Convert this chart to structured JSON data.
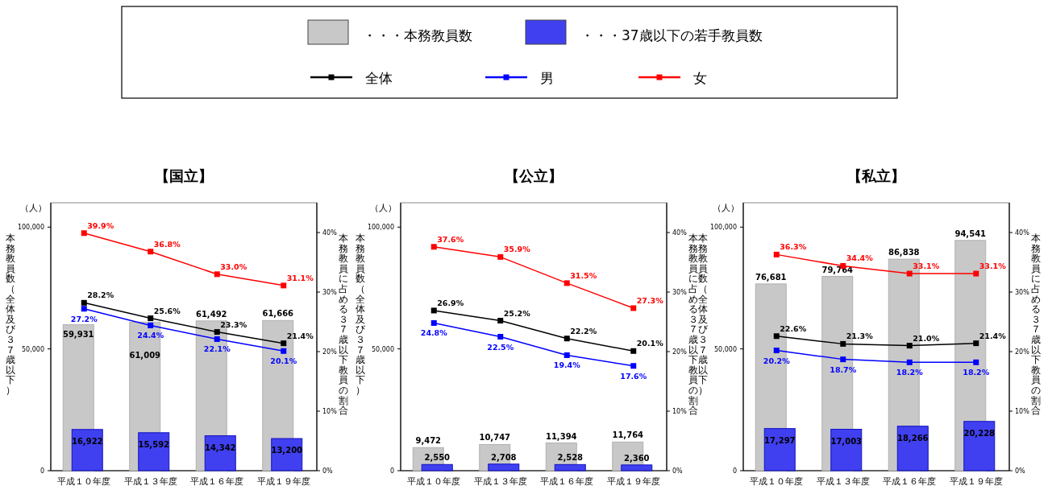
{
  "chart_data": [
    {
      "type": "bar",
      "title": "【国立】",
      "ylabel": "本務教員数（全体及び３７歳以下）",
      "y2label": "本務教員に占める３７歳以下教員の割合",
      "annotations": [
        "（人）"
      ],
      "categories": [
        "平成１０年度",
        "平成１３年度",
        "平成１６年度",
        "平成１９年度"
      ],
      "ylim": [
        0,
        110000
      ],
      "yticks": [
        {
          "value": 0,
          "label": "0"
        },
        {
          "value": 50000,
          "label": "50,000"
        },
        {
          "value": 100000,
          "label": "100,000"
        }
      ],
      "y2lim": [
        0,
        45
      ],
      "y2ticks": [
        {
          "value": 0,
          "label": "0%"
        },
        {
          "value": 10,
          "label": "10%"
        },
        {
          "value": 20,
          "label": "20%"
        },
        {
          "value": 30,
          "label": "30%"
        },
        {
          "value": 40,
          "label": "40%"
        }
      ],
      "legend": "top",
      "marker": "square",
      "series": [
        {
          "name": "・・・本務教員数",
          "type": "bar",
          "color": "#c8c8c8",
          "values": [
            59931,
            61009,
            61492,
            61666
          ],
          "value_labels": [
            "59,931",
            "61,009",
            "61,492",
            "61,666"
          ]
        },
        {
          "name": "・・・37歳以下の若手教員数",
          "type": "bar",
          "color": "#4040f0",
          "values": [
            16922,
            15592,
            14342,
            13200
          ],
          "value_labels": [
            "16,922",
            "15,592",
            "14,342",
            "13,200"
          ]
        },
        {
          "name": "全体",
          "type": "line",
          "axis": "y2",
          "color": "#000000",
          "values": [
            28.2,
            25.6,
            23.3,
            21.4
          ],
          "value_labels": [
            "28.2%",
            "25.6%",
            "23.3%",
            "21.4%"
          ]
        },
        {
          "name": "男",
          "type": "line",
          "axis": "y2",
          "color": "#0000ff",
          "values": [
            27.2,
            24.4,
            22.1,
            20.1
          ],
          "value_labels": [
            "27.2%",
            "24.4%",
            "22.1%",
            "20.1%"
          ]
        },
        {
          "name": "女",
          "type": "line",
          "axis": "y2",
          "color": "#ff0000",
          "values": [
            39.9,
            36.8,
            33.0,
            31.1
          ],
          "value_labels": [
            "39.9%",
            "36.8%",
            "33.0%",
            "31.1%"
          ]
        }
      ]
    },
    {
      "type": "bar",
      "title": "【公立】",
      "ylabel": "本務教員数（全体及び３７歳以下）",
      "y2label": "本務教員に占める３７歳以下教員の割合",
      "annotations": [
        "（人）"
      ],
      "categories": [
        "平成１０年度",
        "平成１３年度",
        "平成１６年度",
        "平成１９年度"
      ],
      "ylim": [
        0,
        110000
      ],
      "yticks": [
        {
          "value": 0,
          "label": "0"
        },
        {
          "value": 50000,
          "label": "50,000"
        },
        {
          "value": 100000,
          "label": "100,000"
        }
      ],
      "y2lim": [
        0,
        45
      ],
      "y2ticks": [
        {
          "value": 0,
          "label": "0%"
        },
        {
          "value": 10,
          "label": "10%"
        },
        {
          "value": 20,
          "label": "20%"
        },
        {
          "value": 30,
          "label": "30%"
        },
        {
          "value": 40,
          "label": "40%"
        }
      ],
      "marker": "square",
      "series": [
        {
          "type": "bar",
          "color": "#c8c8c8",
          "values": [
            9472,
            10747,
            11394,
            11764
          ],
          "value_labels": [
            "9,472",
            "10,747",
            "11,394",
            "11,764"
          ]
        },
        {
          "type": "bar",
          "color": "#4040f0",
          "values": [
            2550,
            2708,
            2528,
            2360
          ],
          "value_labels": [
            "2,550",
            "2,708",
            "2,528",
            "2,360"
          ]
        },
        {
          "type": "line",
          "axis": "y2",
          "color": "#000000",
          "values": [
            26.9,
            25.2,
            22.2,
            20.1
          ],
          "value_labels": [
            "26.9%",
            "25.2%",
            "22.2%",
            "20.1%"
          ]
        },
        {
          "type": "line",
          "axis": "y2",
          "color": "#0000ff",
          "values": [
            24.8,
            22.5,
            19.4,
            17.6
          ],
          "value_labels": [
            "24.8%",
            "22.5%",
            "19.4%",
            "17.6%"
          ]
        },
        {
          "type": "line",
          "axis": "y2",
          "color": "#ff0000",
          "values": [
            37.6,
            35.9,
            31.5,
            27.3
          ],
          "value_labels": [
            "37.6%",
            "35.9%",
            "31.5%",
            "27.3%"
          ]
        }
      ]
    },
    {
      "type": "bar",
      "title": "【私立】",
      "ylabel": "本務教員数（全体及び３７歳以下）",
      "y2label": "本務教員に占める３７歳以下教員の割合",
      "annotations": [
        "（人）"
      ],
      "categories": [
        "平成１０年度",
        "平成１３年度",
        "平成１６年度",
        "平成１９年度"
      ],
      "ylim": [
        0,
        110000
      ],
      "yticks": [
        {
          "value": 0,
          "label": "0"
        },
        {
          "value": 50000,
          "label": "50,000"
        },
        {
          "value": 100000,
          "label": "100,000"
        }
      ],
      "y2lim": [
        0,
        45
      ],
      "y2ticks": [
        {
          "value": 0,
          "label": "0%"
        },
        {
          "value": 10,
          "label": "10%"
        },
        {
          "value": 20,
          "label": "20%"
        },
        {
          "value": 30,
          "label": "30%"
        },
        {
          "value": 40,
          "label": "40%"
        }
      ],
      "marker": "square",
      "series": [
        {
          "type": "bar",
          "color": "#c8c8c8",
          "values": [
            76681,
            79764,
            86838,
            94541
          ],
          "value_labels": [
            "76,681",
            "79,764",
            "86,838",
            "94,541"
          ]
        },
        {
          "type": "bar",
          "color": "#4040f0",
          "values": [
            17297,
            17003,
            18266,
            20228
          ],
          "value_labels": [
            "17,297",
            "17,003",
            "18,266",
            "20,228"
          ]
        },
        {
          "type": "line",
          "axis": "y2",
          "color": "#000000",
          "values": [
            22.6,
            21.3,
            21.0,
            21.4
          ],
          "value_labels": [
            "22.6%",
            "21.3%",
            "21.0%",
            "21.4%"
          ]
        },
        {
          "type": "line",
          "axis": "y2",
          "color": "#0000ff",
          "values": [
            20.2,
            18.7,
            18.2,
            18.2
          ],
          "value_labels": [
            "20.2%",
            "18.7%",
            "18.2%",
            "18.2%"
          ]
        },
        {
          "type": "line",
          "axis": "y2",
          "color": "#ff0000",
          "values": [
            36.3,
            34.4,
            33.1,
            33.1
          ],
          "value_labels": [
            "36.3%",
            "34.4%",
            "33.1%",
            "33.1%"
          ]
        }
      ]
    }
  ]
}
